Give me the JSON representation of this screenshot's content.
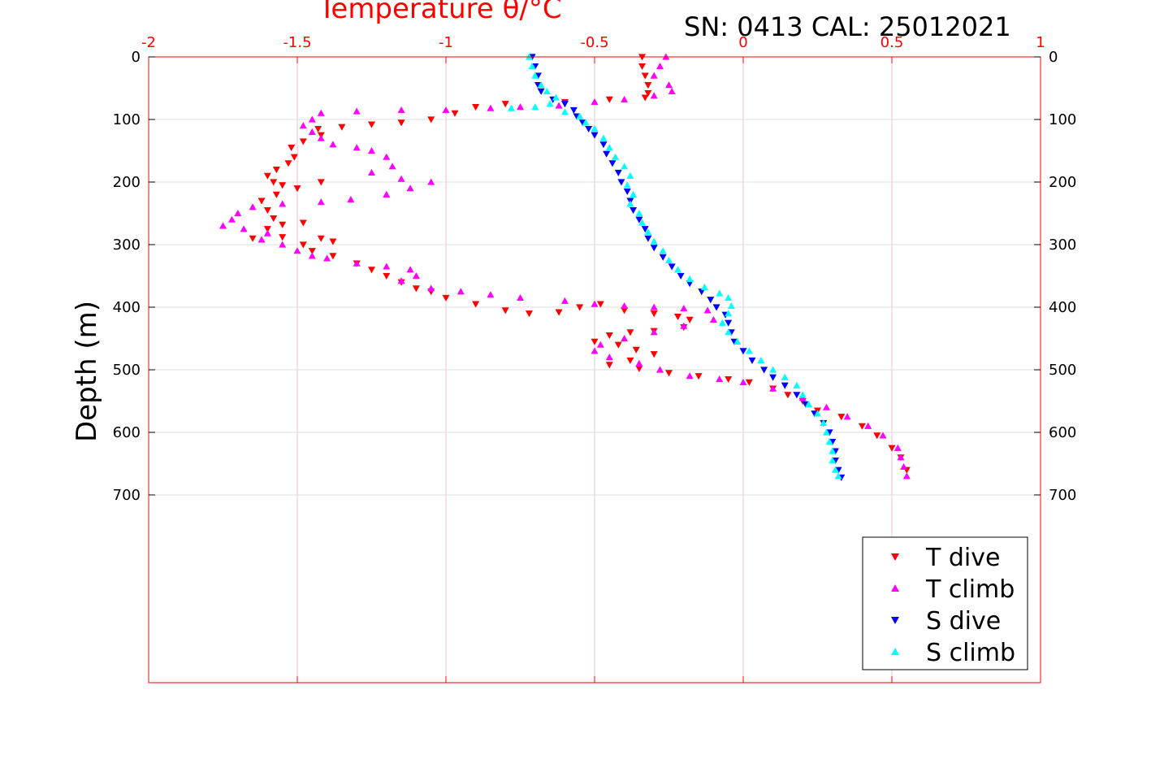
{
  "chart_data": {
    "type": "scatter",
    "title": "SN: 0413  CAL: 25012021",
    "xlabel": "Temperature θ/°C",
    "ylabel": "Depth (m)",
    "xlim": [
      -2,
      1
    ],
    "ylim": [
      0,
      1000
    ],
    "y_reversed": true,
    "x_axis_position": "top",
    "x_ticks": [
      -2,
      -1.5,
      -1,
      -0.5,
      0,
      0.5,
      1
    ],
    "x_tick_labels": [
      "-2",
      "-1.5",
      "-1",
      "-0.5",
      "0",
      "0.5",
      "1"
    ],
    "y_ticks": [
      0,
      100,
      200,
      300,
      400,
      500,
      600,
      700
    ],
    "y_tick_labels": [
      "0",
      "100",
      "200",
      "300",
      "400",
      "500",
      "600",
      "700"
    ],
    "grid": true,
    "legend_position": "bottom-right",
    "axis_color": "#ff0000",
    "series": [
      {
        "name": "T dive",
        "marker": "triangle-down",
        "color": "#ff0000",
        "points": [
          [
            -0.34,
            0
          ],
          [
            -0.34,
            15
          ],
          [
            -0.33,
            30
          ],
          [
            -0.32,
            45
          ],
          [
            -0.32,
            58
          ],
          [
            -0.33,
            65
          ],
          [
            -0.45,
            68
          ],
          [
            -0.6,
            72
          ],
          [
            -0.8,
            75
          ],
          [
            -0.9,
            80
          ],
          [
            -0.97,
            90
          ],
          [
            -1.05,
            100
          ],
          [
            -1.15,
            105
          ],
          [
            -1.25,
            108
          ],
          [
            -1.35,
            112
          ],
          [
            -1.43,
            115
          ],
          [
            -1.42,
            125
          ],
          [
            -1.48,
            135
          ],
          [
            -1.52,
            145
          ],
          [
            -1.51,
            160
          ],
          [
            -1.53,
            170
          ],
          [
            -1.57,
            180
          ],
          [
            -1.6,
            190
          ],
          [
            -1.58,
            200
          ],
          [
            -1.55,
            205
          ],
          [
            -1.5,
            210
          ],
          [
            -1.42,
            200
          ],
          [
            -1.57,
            220
          ],
          [
            -1.62,
            230
          ],
          [
            -1.6,
            245
          ],
          [
            -1.58,
            258
          ],
          [
            -1.55,
            268
          ],
          [
            -1.48,
            265
          ],
          [
            -1.6,
            275
          ],
          [
            -1.65,
            290
          ],
          [
            -1.55,
            288
          ],
          [
            -1.42,
            290
          ],
          [
            -1.38,
            295
          ],
          [
            -1.48,
            300
          ],
          [
            -1.45,
            310
          ],
          [
            -1.38,
            318
          ],
          [
            -1.3,
            330
          ],
          [
            -1.25,
            340
          ],
          [
            -1.2,
            350
          ],
          [
            -1.15,
            360
          ],
          [
            -1.1,
            370
          ],
          [
            -1.05,
            375
          ],
          [
            -1.0,
            385
          ],
          [
            -0.9,
            395
          ],
          [
            -0.8,
            405
          ],
          [
            -0.72,
            410
          ],
          [
            -0.62,
            408
          ],
          [
            -0.55,
            400
          ],
          [
            -0.48,
            395
          ],
          [
            -0.4,
            405
          ],
          [
            -0.3,
            410
          ],
          [
            -0.22,
            415
          ],
          [
            -0.18,
            420
          ],
          [
            -0.2,
            432
          ],
          [
            -0.3,
            438
          ],
          [
            -0.38,
            440
          ],
          [
            -0.45,
            445
          ],
          [
            -0.5,
            455
          ],
          [
            -0.42,
            460
          ],
          [
            -0.36,
            468
          ],
          [
            -0.3,
            475
          ],
          [
            -0.38,
            485
          ],
          [
            -0.45,
            492
          ],
          [
            -0.35,
            498
          ],
          [
            -0.25,
            505
          ],
          [
            -0.15,
            510
          ],
          [
            -0.05,
            515
          ],
          [
            0.02,
            520
          ],
          [
            0.1,
            530
          ],
          [
            0.15,
            540
          ],
          [
            0.2,
            550
          ],
          [
            0.25,
            565
          ],
          [
            0.33,
            575
          ],
          [
            0.4,
            590
          ],
          [
            0.45,
            605
          ],
          [
            0.5,
            625
          ],
          [
            0.53,
            640
          ],
          [
            0.55,
            660
          ]
        ]
      },
      {
        "name": "T climb",
        "marker": "triangle-up",
        "color": "#ff00ff",
        "points": [
          [
            -0.26,
            0
          ],
          [
            -0.28,
            15
          ],
          [
            -0.3,
            30
          ],
          [
            -0.25,
            45
          ],
          [
            -0.24,
            55
          ],
          [
            -0.3,
            62
          ],
          [
            -0.4,
            68
          ],
          [
            -0.5,
            72
          ],
          [
            -0.62,
            78
          ],
          [
            -0.75,
            80
          ],
          [
            -0.85,
            82
          ],
          [
            -1.0,
            85
          ],
          [
            -1.15,
            85
          ],
          [
            -1.3,
            87
          ],
          [
            -1.42,
            90
          ],
          [
            -1.45,
            100
          ],
          [
            -1.48,
            110
          ],
          [
            -1.45,
            120
          ],
          [
            -1.42,
            130
          ],
          [
            -1.38,
            140
          ],
          [
            -1.3,
            145
          ],
          [
            -1.25,
            150
          ],
          [
            -1.2,
            160
          ],
          [
            -1.18,
            175
          ],
          [
            -1.25,
            185
          ],
          [
            -1.15,
            195
          ],
          [
            -1.05,
            200
          ],
          [
            -1.12,
            210
          ],
          [
            -1.2,
            220
          ],
          [
            -1.32,
            228
          ],
          [
            -1.42,
            232
          ],
          [
            -1.55,
            235
          ],
          [
            -1.65,
            240
          ],
          [
            -1.7,
            250
          ],
          [
            -1.72,
            260
          ],
          [
            -1.75,
            270
          ],
          [
            -1.68,
            275
          ],
          [
            -1.6,
            282
          ],
          [
            -1.62,
            292
          ],
          [
            -1.55,
            300
          ],
          [
            -1.5,
            310
          ],
          [
            -1.45,
            318
          ],
          [
            -1.4,
            322
          ],
          [
            -1.3,
            330
          ],
          [
            -1.2,
            335
          ],
          [
            -1.12,
            340
          ],
          [
            -1.1,
            350
          ],
          [
            -1.15,
            358
          ],
          [
            -1.05,
            370
          ],
          [
            -0.95,
            375
          ],
          [
            -0.85,
            380
          ],
          [
            -0.75,
            385
          ],
          [
            -0.6,
            390
          ],
          [
            -0.5,
            395
          ],
          [
            -0.4,
            398
          ],
          [
            -0.3,
            400
          ],
          [
            -0.2,
            402
          ],
          [
            -0.12,
            405
          ],
          [
            -0.1,
            420
          ],
          [
            -0.2,
            430
          ],
          [
            -0.3,
            440
          ],
          [
            -0.4,
            450
          ],
          [
            -0.48,
            460
          ],
          [
            -0.5,
            470
          ],
          [
            -0.45,
            480
          ],
          [
            -0.35,
            490
          ],
          [
            -0.28,
            500
          ],
          [
            -0.18,
            510
          ],
          [
            -0.08,
            515
          ],
          [
            0.0,
            520
          ],
          [
            0.1,
            530
          ],
          [
            0.2,
            545
          ],
          [
            0.28,
            560
          ],
          [
            0.35,
            575
          ],
          [
            0.42,
            590
          ],
          [
            0.47,
            605
          ],
          [
            0.52,
            625
          ],
          [
            0.53,
            640
          ],
          [
            0.54,
            655
          ],
          [
            0.55,
            670
          ]
        ]
      },
      {
        "name": "S dive",
        "marker": "triangle-down",
        "color": "#0000ff",
        "points": [
          [
            -0.71,
            0
          ],
          [
            -0.7,
            15
          ],
          [
            -0.69,
            30
          ],
          [
            -0.69,
            45
          ],
          [
            -0.68,
            55
          ],
          [
            -0.64,
            68
          ],
          [
            -0.6,
            75
          ],
          [
            -0.57,
            85
          ],
          [
            -0.56,
            95
          ],
          [
            -0.54,
            105
          ],
          [
            -0.52,
            115
          ],
          [
            -0.5,
            125
          ],
          [
            -0.47,
            140
          ],
          [
            -0.46,
            155
          ],
          [
            -0.44,
            170
          ],
          [
            -0.42,
            185
          ],
          [
            -0.41,
            200
          ],
          [
            -0.39,
            215
          ],
          [
            -0.38,
            230
          ],
          [
            -0.37,
            245
          ],
          [
            -0.35,
            260
          ],
          [
            -0.33,
            275
          ],
          [
            -0.32,
            290
          ],
          [
            -0.3,
            305
          ],
          [
            -0.27,
            320
          ],
          [
            -0.24,
            335
          ],
          [
            -0.21,
            350
          ],
          [
            -0.18,
            362
          ],
          [
            -0.14,
            375
          ],
          [
            -0.11,
            388
          ],
          [
            -0.09,
            400
          ],
          [
            -0.06,
            412
          ],
          [
            -0.05,
            425
          ],
          [
            -0.04,
            440
          ],
          [
            -0.03,
            455
          ],
          [
            0.0,
            470
          ],
          [
            0.03,
            485
          ],
          [
            0.07,
            500
          ],
          [
            0.1,
            512
          ],
          [
            0.14,
            525
          ],
          [
            0.18,
            540
          ],
          [
            0.21,
            555
          ],
          [
            0.24,
            570
          ],
          [
            0.27,
            585
          ],
          [
            0.29,
            600
          ],
          [
            0.3,
            615
          ],
          [
            0.31,
            630
          ],
          [
            0.31,
            645
          ],
          [
            0.32,
            660
          ],
          [
            0.33,
            672
          ]
        ]
      },
      {
        "name": "S climb",
        "marker": "triangle-up",
        "color": "#00ffff",
        "points": [
          [
            -0.72,
            0
          ],
          [
            -0.71,
            15
          ],
          [
            -0.7,
            30
          ],
          [
            -0.68,
            45
          ],
          [
            -0.66,
            55
          ],
          [
            -0.63,
            65
          ],
          [
            -0.65,
            75
          ],
          [
            -0.7,
            80
          ],
          [
            -0.78,
            82
          ],
          [
            -0.6,
            88
          ],
          [
            -0.55,
            95
          ],
          [
            -0.53,
            105
          ],
          [
            -0.5,
            115
          ],
          [
            -0.47,
            130
          ],
          [
            -0.45,
            145
          ],
          [
            -0.43,
            160
          ],
          [
            -0.4,
            175
          ],
          [
            -0.38,
            190
          ],
          [
            -0.39,
            205
          ],
          [
            -0.37,
            220
          ],
          [
            -0.38,
            235
          ],
          [
            -0.35,
            250
          ],
          [
            -0.34,
            265
          ],
          [
            -0.32,
            280
          ],
          [
            -0.3,
            295
          ],
          [
            -0.27,
            310
          ],
          [
            -0.25,
            325
          ],
          [
            -0.22,
            340
          ],
          [
            -0.18,
            355
          ],
          [
            -0.13,
            368
          ],
          [
            -0.08,
            378
          ],
          [
            -0.05,
            385
          ],
          [
            -0.04,
            398
          ],
          [
            -0.05,
            410
          ],
          [
            -0.07,
            425
          ],
          [
            -0.05,
            440
          ],
          [
            -0.02,
            455
          ],
          [
            0.02,
            470
          ],
          [
            0.06,
            485
          ],
          [
            0.1,
            500
          ],
          [
            0.14,
            512
          ],
          [
            0.18,
            525
          ],
          [
            0.2,
            540
          ],
          [
            0.22,
            555
          ],
          [
            0.25,
            570
          ],
          [
            0.27,
            585
          ],
          [
            0.28,
            600
          ],
          [
            0.29,
            615
          ],
          [
            0.3,
            630
          ],
          [
            0.3,
            645
          ],
          [
            0.31,
            660
          ],
          [
            0.32,
            670
          ]
        ]
      }
    ]
  }
}
